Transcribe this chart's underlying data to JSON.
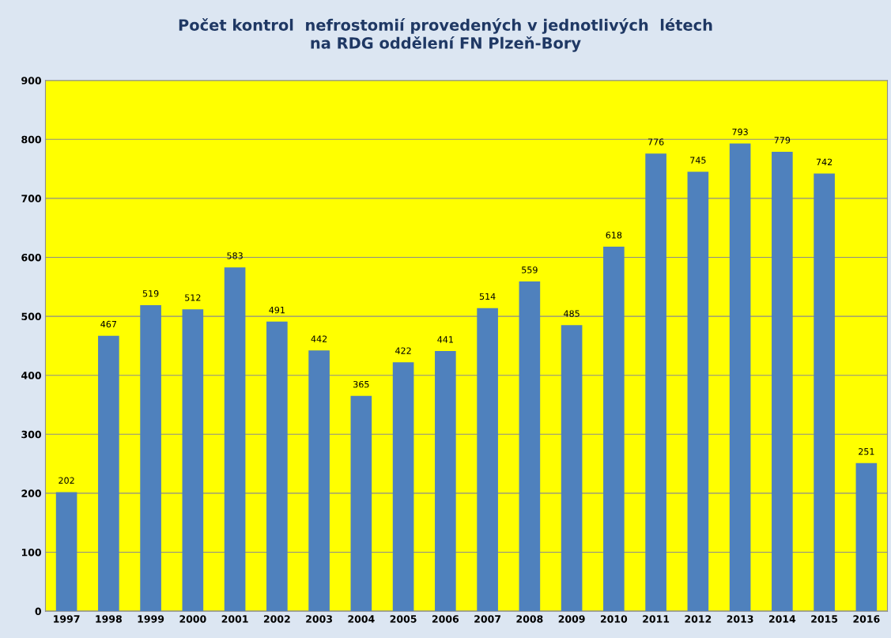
{
  "chart_data": {
    "type": "bar",
    "title": "Počet kontrol  nefrostomií provedených v jednotlivých  létech\nna RDG oddělení FN Plzeň-Bory",
    "categories": [
      "1997",
      "1998",
      "1999",
      "2000",
      "2001",
      "2002",
      "2003",
      "2004",
      "2005",
      "2006",
      "2007",
      "2008",
      "2009",
      "2010",
      "2011",
      "2012",
      "2013",
      "2014",
      "2015",
      "2016"
    ],
    "values": [
      202,
      467,
      519,
      512,
      583,
      491,
      442,
      365,
      422,
      441,
      514,
      559,
      485,
      618,
      776,
      745,
      793,
      779,
      742,
      251
    ],
    "color": "#4f81bd",
    "ylim": [
      0,
      900
    ],
    "yticks": [
      0,
      100,
      200,
      300,
      400,
      500,
      600,
      700,
      800,
      900
    ],
    "grid": "y",
    "data_labels": true
  }
}
